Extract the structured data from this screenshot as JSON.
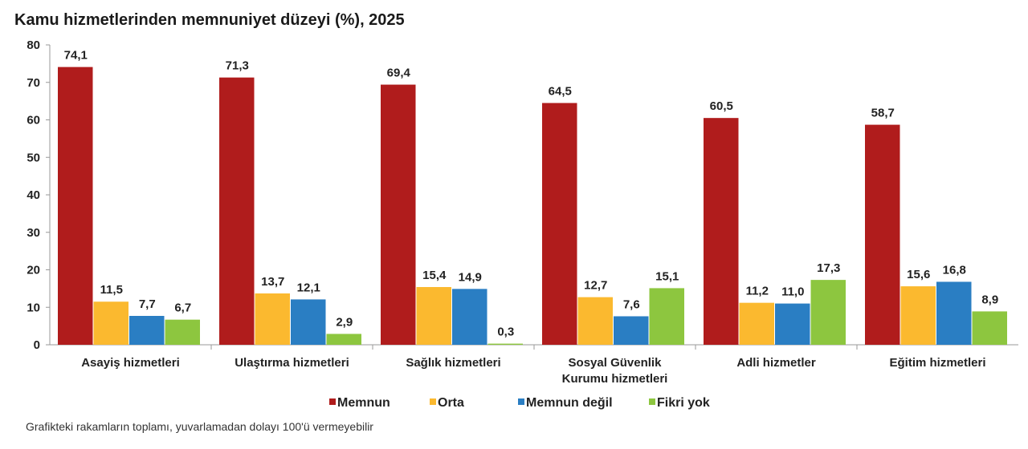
{
  "chart_data": {
    "type": "bar",
    "title": "Kamu hizmetlerinden memnuniyet düzeyi (%), 2025",
    "categories": [
      [
        "Asayiş hizmetleri"
      ],
      [
        "Ulaştırma hizmetleri"
      ],
      [
        "Sağlık hizmetleri"
      ],
      [
        "Sosyal Güvenlik",
        "Kurumu hizmetleri"
      ],
      [
        "Adli hizmetler"
      ],
      [
        "Eğitim hizmetleri"
      ]
    ],
    "series": [
      {
        "name": "Memnun",
        "color": "#b01c1c",
        "values": [
          74.1,
          71.3,
          69.4,
          64.5,
          60.5,
          58.7
        ]
      },
      {
        "name": "Orta",
        "color": "#fbb92f",
        "values": [
          11.5,
          13.7,
          15.4,
          12.7,
          11.2,
          15.6
        ]
      },
      {
        "name": "Memnun değil",
        "color": "#2a7ec3",
        "values": [
          7.7,
          12.1,
          14.9,
          7.6,
          11.0,
          16.8
        ]
      },
      {
        "name": "Fikri yok",
        "color": "#8dc63f",
        "values": [
          6.7,
          2.9,
          0.3,
          15.1,
          17.3,
          8.9
        ]
      }
    ],
    "yticks": [
      0,
      10,
      20,
      30,
      40,
      50,
      60,
      70,
      80
    ],
    "ylim": [
      0,
      80
    ],
    "grid": false,
    "legend_position": "bottom",
    "decimal_separator": ",",
    "xlabel": "",
    "ylabel": ""
  },
  "footnote": "Grafikteki rakamların toplamı, yuvarlamadan dolayı 100'ü vermeyebilir"
}
